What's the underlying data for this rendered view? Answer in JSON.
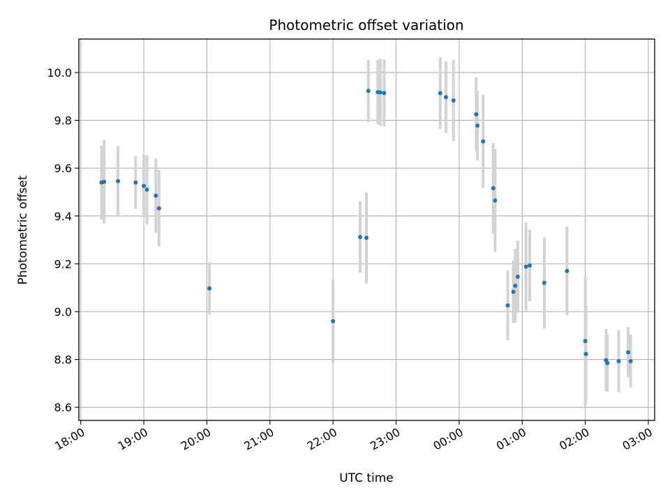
{
  "chart_data": {
    "type": "scatter",
    "title": "Photometric offset variation",
    "xlabel": "UTC time",
    "ylabel": "Photometric offset",
    "grid": true,
    "x_unit": "hours since 18:00 UTC",
    "xlim": [
      -0.03,
      9.1
    ],
    "ylim": [
      8.545,
      10.14
    ],
    "x_ticks": [
      {
        "value": 0,
        "label": "18:00"
      },
      {
        "value": 1,
        "label": "19:00"
      },
      {
        "value": 2,
        "label": "20:00"
      },
      {
        "value": 3,
        "label": "21:00"
      },
      {
        "value": 4,
        "label": "22:00"
      },
      {
        "value": 5,
        "label": "23:00"
      },
      {
        "value": 6,
        "label": "00:00"
      },
      {
        "value": 7,
        "label": "01:00"
      },
      {
        "value": 8,
        "label": "02:00"
      },
      {
        "value": 9,
        "label": "03:00"
      }
    ],
    "y_ticks": [
      {
        "value": 8.6,
        "label": "8.6"
      },
      {
        "value": 8.8,
        "label": "8.8"
      },
      {
        "value": 9.0,
        "label": "9.0"
      },
      {
        "value": 9.2,
        "label": "9.2"
      },
      {
        "value": 9.4,
        "label": "9.4"
      },
      {
        "value": 9.6,
        "label": "9.6"
      },
      {
        "value": 9.8,
        "label": "9.8"
      },
      {
        "value": 10.0,
        "label": "10.0"
      }
    ],
    "series": [
      {
        "name": "Photometric offset",
        "marker_color": "#1f77b4",
        "errorbar_color": "#d3d3d3",
        "points": [
          {
            "x": 0.33,
            "y": 9.54,
            "err": 0.155
          },
          {
            "x": 0.37,
            "y": 9.543,
            "err": 0.175
          },
          {
            "x": 0.59,
            "y": 9.546,
            "err": 0.145
          },
          {
            "x": 0.87,
            "y": 9.54,
            "err": 0.11
          },
          {
            "x": 1.0,
            "y": 9.526,
            "err": 0.13
          },
          {
            "x": 1.05,
            "y": 9.51,
            "err": 0.145
          },
          {
            "x": 1.19,
            "y": 9.485,
            "err": 0.155
          },
          {
            "x": 1.24,
            "y": 9.432,
            "err": 0.16
          },
          {
            "x": 2.04,
            "y": 9.097,
            "err": 0.11
          },
          {
            "x": 4.0,
            "y": 8.96,
            "err": 0.175
          },
          {
            "x": 4.43,
            "y": 9.312,
            "err": 0.15
          },
          {
            "x": 4.53,
            "y": 9.309,
            "err": 0.19
          },
          {
            "x": 4.56,
            "y": 9.923,
            "err": 0.13
          },
          {
            "x": 4.71,
            "y": 9.918,
            "err": 0.135
          },
          {
            "x": 4.75,
            "y": 9.917,
            "err": 0.14
          },
          {
            "x": 4.81,
            "y": 9.914,
            "err": 0.14
          },
          {
            "x": 5.7,
            "y": 9.914,
            "err": 0.15
          },
          {
            "x": 5.79,
            "y": 9.897,
            "err": 0.15
          },
          {
            "x": 5.91,
            "y": 9.883,
            "err": 0.17
          },
          {
            "x": 6.27,
            "y": 9.825,
            "err": 0.155
          },
          {
            "x": 6.29,
            "y": 9.778,
            "err": 0.145
          },
          {
            "x": 6.38,
            "y": 9.712,
            "err": 0.195
          },
          {
            "x": 6.54,
            "y": 9.516,
            "err": 0.19
          },
          {
            "x": 6.57,
            "y": 9.465,
            "err": 0.215
          },
          {
            "x": 6.77,
            "y": 9.026,
            "err": 0.145
          },
          {
            "x": 6.86,
            "y": 9.083,
            "err": 0.13
          },
          {
            "x": 6.89,
            "y": 9.108,
            "err": 0.155
          },
          {
            "x": 6.93,
            "y": 9.146,
            "err": 0.15
          },
          {
            "x": 7.06,
            "y": 9.188,
            "err": 0.185
          },
          {
            "x": 7.12,
            "y": 9.193,
            "err": 0.15
          },
          {
            "x": 7.35,
            "y": 9.12,
            "err": 0.19
          },
          {
            "x": 7.71,
            "y": 9.17,
            "err": 0.185
          },
          {
            "x": 8.0,
            "y": 8.877,
            "err": 0.27
          },
          {
            "x": 8.01,
            "y": 8.823,
            "err": 0.205
          },
          {
            "x": 8.33,
            "y": 8.797,
            "err": 0.13
          },
          {
            "x": 8.35,
            "y": 8.785,
            "err": 0.12
          },
          {
            "x": 8.53,
            "y": 8.793,
            "err": 0.13
          },
          {
            "x": 8.68,
            "y": 8.83,
            "err": 0.105
          },
          {
            "x": 8.72,
            "y": 8.793,
            "err": 0.11
          }
        ]
      }
    ]
  }
}
